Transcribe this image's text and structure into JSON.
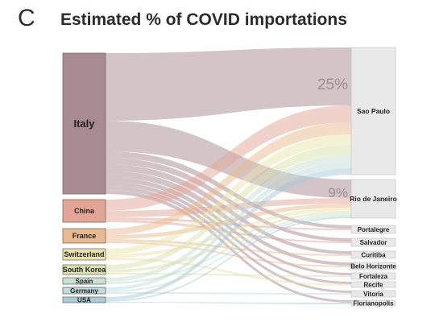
{
  "header": {
    "panel_letter": "C",
    "title": "Estimated % of COVID importations"
  },
  "colors": {
    "Italy": "#a88a92",
    "China": "#e3a595",
    "France": "#e9b98f",
    "Switzerland": "#ece3a9",
    "South Korea": "#d9e3ad",
    "Spain": "#c9e1cf",
    "Germany": "#bfdcd9",
    "USA": "#a9cad8",
    "destination": "#e9e9e9"
  },
  "sources": [
    {
      "id": "italy",
      "label": "Italy"
    },
    {
      "id": "china",
      "label": "China"
    },
    {
      "id": "france",
      "label": "France"
    },
    {
      "id": "switzerland",
      "label": "Switzerland"
    },
    {
      "id": "south-korea",
      "label": "South Korea"
    },
    {
      "id": "spain",
      "label": "Spain"
    },
    {
      "id": "germany",
      "label": "Germany"
    },
    {
      "id": "usa",
      "label": "USA"
    }
  ],
  "destinations": [
    {
      "id": "sao-paulo",
      "label": "Sao Paulo",
      "pct_label": "25%"
    },
    {
      "id": "rio-de-janeiro",
      "label": "Rio de Janeiro",
      "pct_label": "9%"
    },
    {
      "id": "portalegre",
      "label": "Portalegre"
    },
    {
      "id": "salvador",
      "label": "Salvador"
    },
    {
      "id": "curitiba",
      "label": "Curitiba"
    },
    {
      "id": "belo-horizonte",
      "label": "Belo Horizonte"
    },
    {
      "id": "fortaleza",
      "label": "Fortaleza"
    },
    {
      "id": "recife",
      "label": "Recife"
    },
    {
      "id": "vitoria",
      "label": "Vitoria"
    },
    {
      "id": "florianopolis",
      "label": "Florianopolis"
    }
  ]
}
